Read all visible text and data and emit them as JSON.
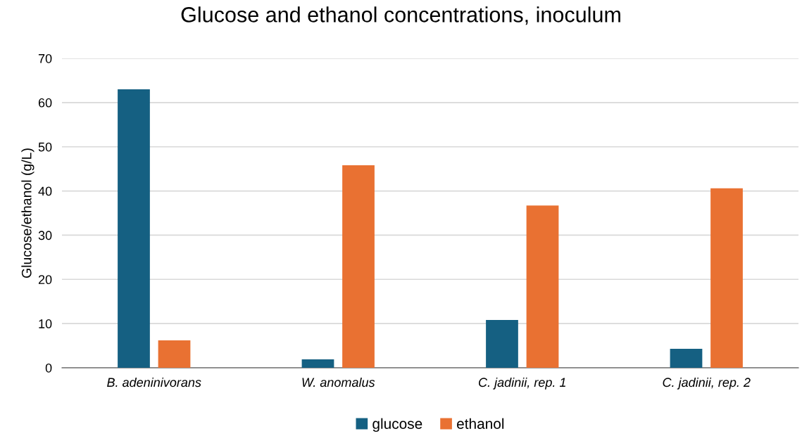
{
  "chart_data": {
    "type": "bar",
    "title": "Glucose and ethanol concentrations, inoculum",
    "ylabel": "Glucose/ethanol (g/L)",
    "categories": [
      "B. adeninivorans",
      "W. anomalus",
      "C. jadinii, rep. 1",
      "C. jadinii, rep. 2"
    ],
    "series": [
      {
        "name": "glucose",
        "color": "#156082",
        "values": [
          63.0,
          1.9,
          10.8,
          4.3
        ]
      },
      {
        "name": "ethanol",
        "color": "#e97132",
        "values": [
          6.2,
          45.8,
          36.7,
          40.6
        ]
      }
    ],
    "ylim": [
      0,
      70
    ],
    "yticks": [
      0,
      10,
      20,
      30,
      40,
      50,
      60,
      70
    ],
    "grid": "y",
    "legend": "bottom"
  }
}
